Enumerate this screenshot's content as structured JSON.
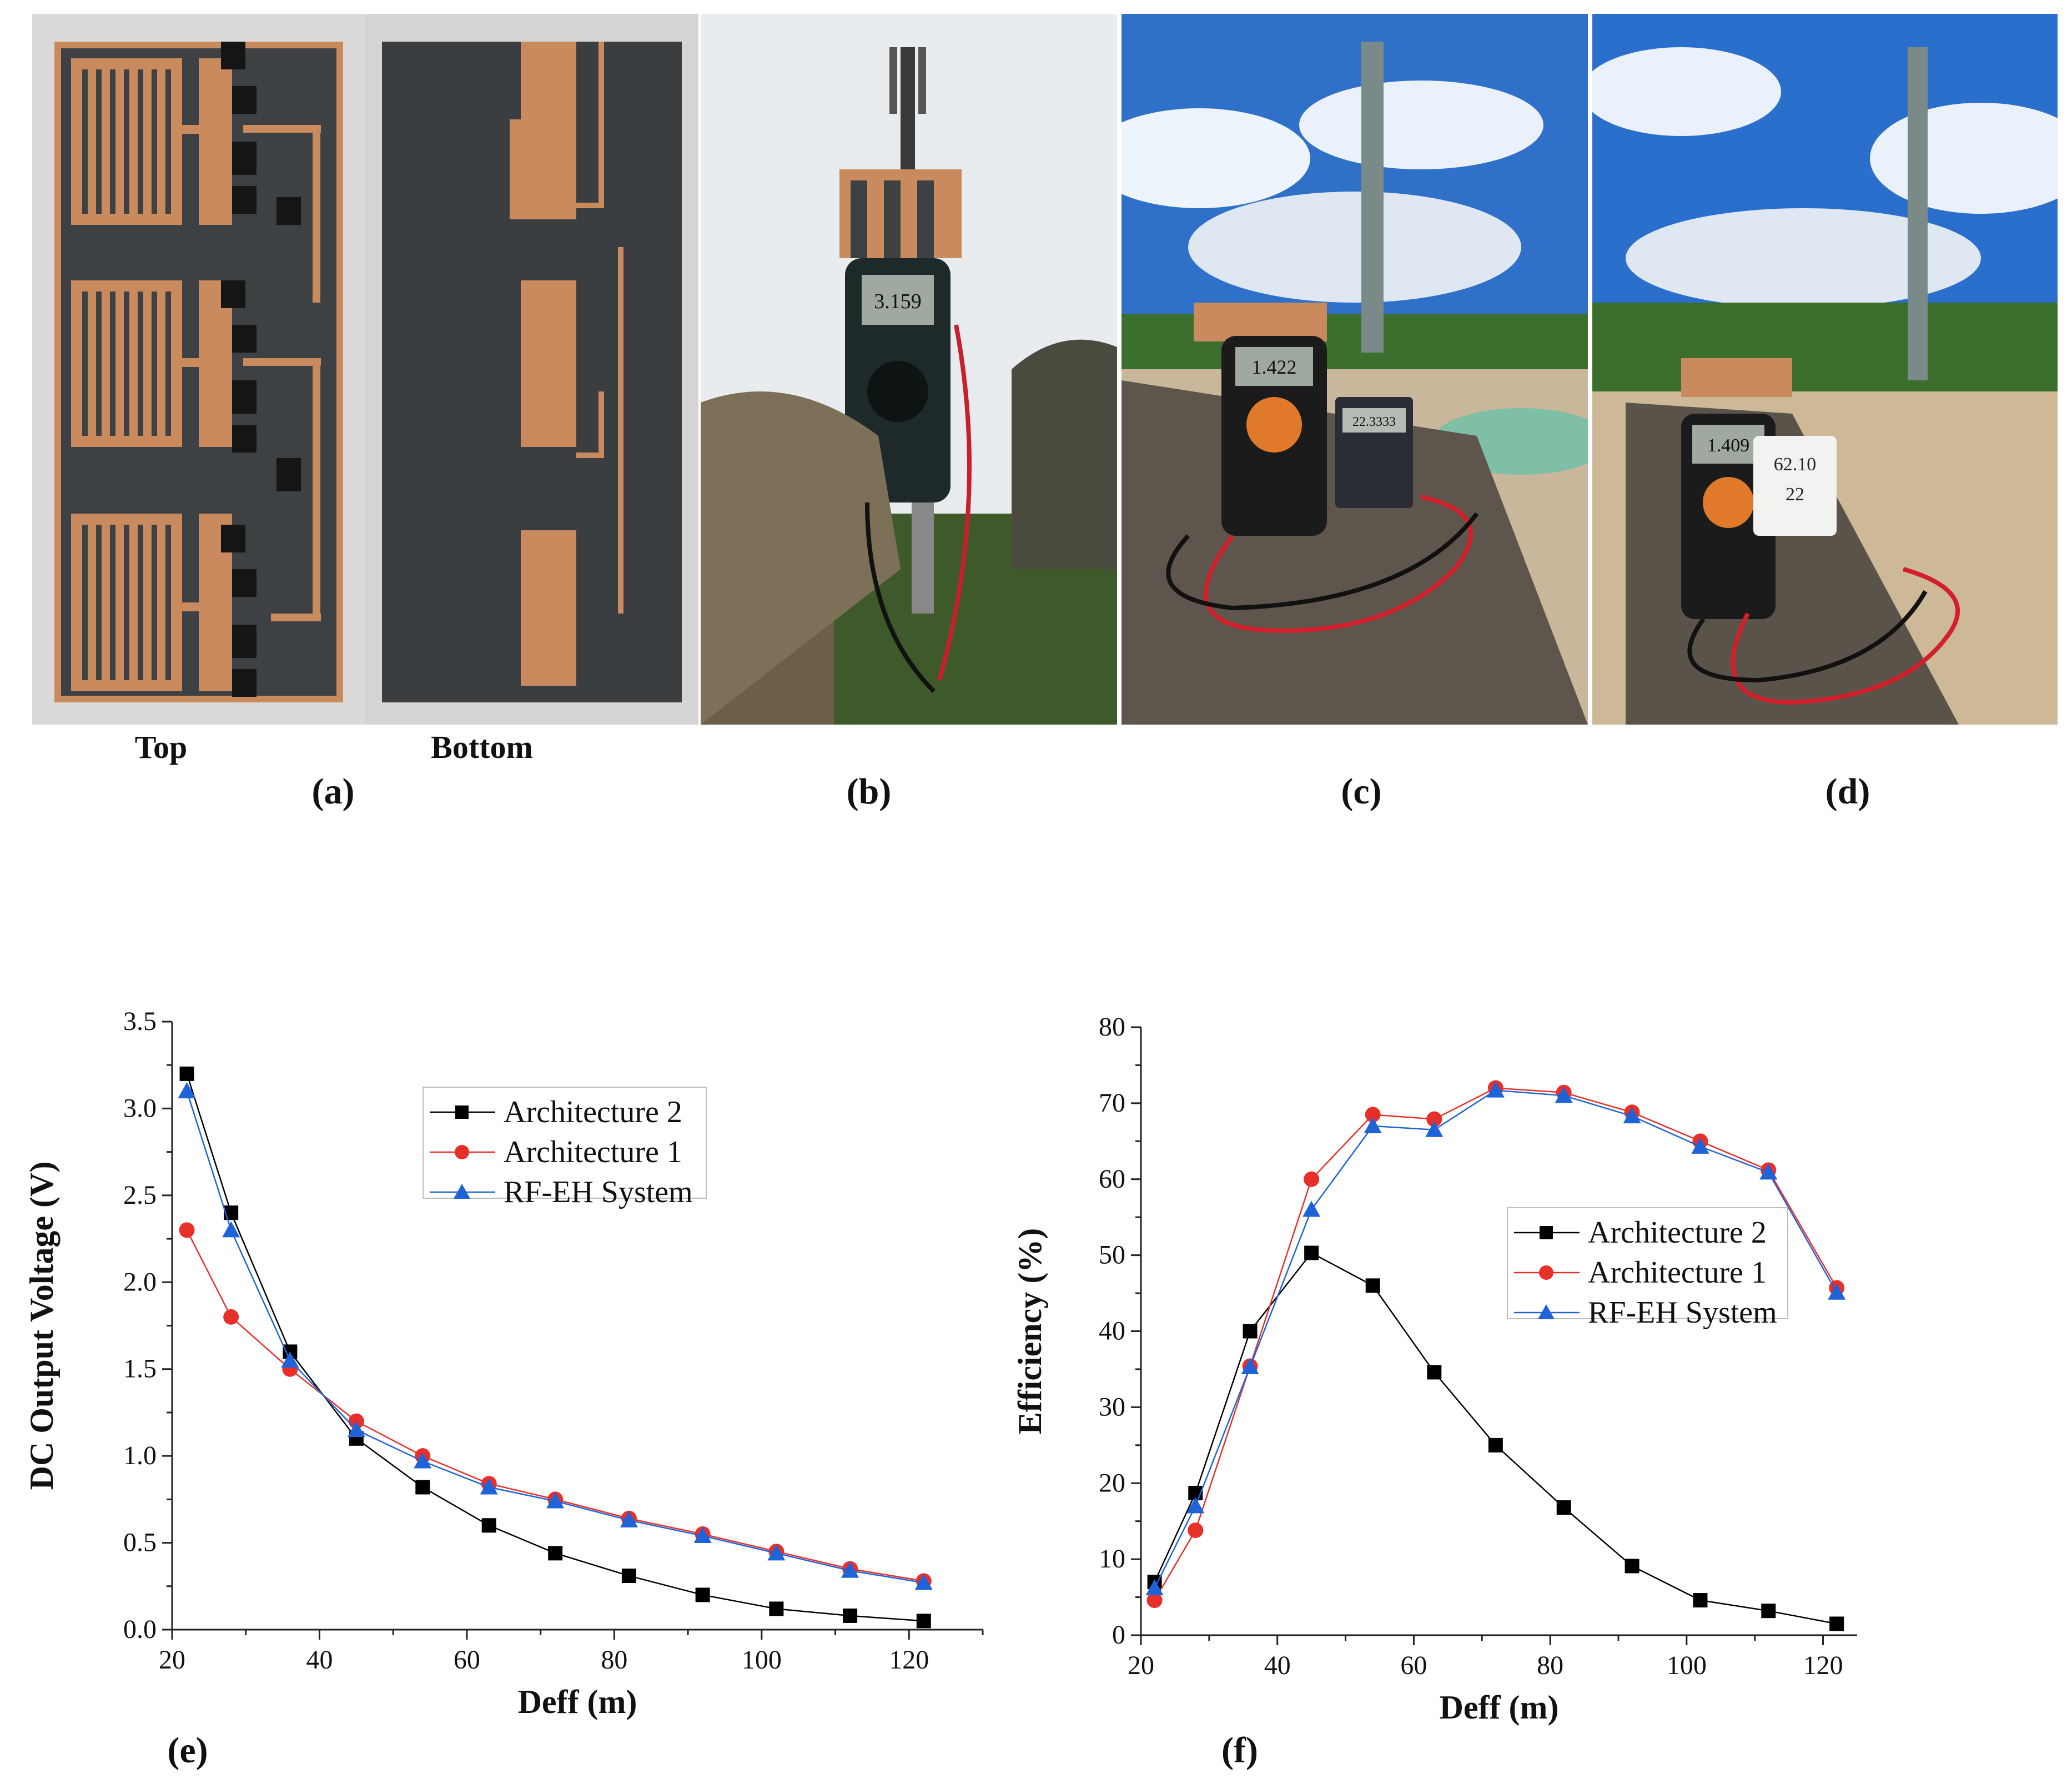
{
  "photos": {
    "a": {
      "label": "(a)",
      "top_label": "Top",
      "bottom_label": "Bottom"
    },
    "b": {
      "label": "(b)",
      "meter_reading": "3.159"
    },
    "c": {
      "label": "(c)",
      "meter_reading": "1.422",
      "calc_reading": "22.3333"
    },
    "d": {
      "label": "(d)",
      "meter_reading": "1.409",
      "thermo_reading_1": "62.10",
      "thermo_reading_2": "22"
    }
  },
  "charts_labels": {
    "e": "(e)",
    "f": "(f)"
  },
  "colors": {
    "architecture2": "#000000",
    "architecture1": "#e8302a",
    "rfeh": "#1f63d8",
    "copper": "#c98a5e",
    "board": "#3e4144"
  },
  "chart_data": [
    {
      "type": "line",
      "xlabel": "Deff (m)",
      "ylabel": "DC Output Voltage (V)",
      "xlim": [
        20,
        130
      ],
      "ylim": [
        0,
        3.5
      ],
      "xticks": [
        20,
        40,
        60,
        80,
        100,
        120
      ],
      "yticks": [
        0.0,
        0.5,
        1.0,
        1.5,
        2.0,
        2.5,
        3.0,
        3.5
      ],
      "yticklabels": [
        "0.0",
        "0.5",
        "1.0",
        "1.5",
        "2.0",
        "2.5",
        "3.0",
        "3.5"
      ],
      "legend": "top-center",
      "x": [
        22,
        28,
        36,
        45,
        54,
        63,
        72,
        82,
        92,
        102,
        112,
        122
      ],
      "series": [
        {
          "name": "Architecture 2",
          "marker": "square",
          "color": "#000000",
          "values": [
            3.2,
            2.4,
            1.6,
            1.1,
            0.82,
            0.6,
            0.44,
            0.31,
            0.2,
            0.12,
            0.08,
            0.05
          ]
        },
        {
          "name": "Architecture 1",
          "marker": "circle",
          "color": "#e8302a",
          "values": [
            2.3,
            1.8,
            1.5,
            1.2,
            1.0,
            0.84,
            0.75,
            0.64,
            0.55,
            0.45,
            0.35,
            0.28
          ]
        },
        {
          "name": "RF-EH System",
          "marker": "triangle",
          "color": "#1f63d8",
          "values": [
            3.1,
            2.3,
            1.55,
            1.15,
            0.97,
            0.82,
            0.74,
            0.63,
            0.54,
            0.44,
            0.34,
            0.27
          ]
        }
      ]
    },
    {
      "type": "line",
      "xlabel": "Deff (m)",
      "ylabel": "Efficiency (%)",
      "xlim": [
        20,
        125
      ],
      "ylim": [
        0,
        80
      ],
      "xticks": [
        20,
        40,
        60,
        80,
        100,
        120
      ],
      "yticks": [
        0,
        10,
        20,
        30,
        40,
        50,
        60,
        70,
        80
      ],
      "yticklabels": [
        "0",
        "10",
        "20",
        "30",
        "40",
        "50",
        "60",
        "70",
        "80"
      ],
      "legend": "center-right",
      "x": [
        22,
        28,
        36,
        45,
        54,
        63,
        72,
        82,
        92,
        102,
        112,
        122
      ],
      "series": [
        {
          "name": "Architecture 2",
          "marker": "square",
          "color": "#000000",
          "values": [
            7,
            18.7,
            40,
            50.3,
            46,
            34.6,
            25,
            16.8,
            9.1,
            4.6,
            3.2,
            1.5
          ]
        },
        {
          "name": "Architecture 1",
          "marker": "circle",
          "color": "#e8302a",
          "values": [
            4.6,
            13.8,
            35.4,
            60,
            68.5,
            67.9,
            72,
            71.4,
            68.8,
            65,
            61.2,
            45.7
          ]
        },
        {
          "name": "RF-EH System",
          "marker": "triangle",
          "color": "#1f63d8",
          "values": [
            6.2,
            17,
            35.3,
            56,
            67,
            66.5,
            71.7,
            71,
            68.3,
            64.3,
            60.9,
            45.1
          ]
        }
      ]
    }
  ]
}
